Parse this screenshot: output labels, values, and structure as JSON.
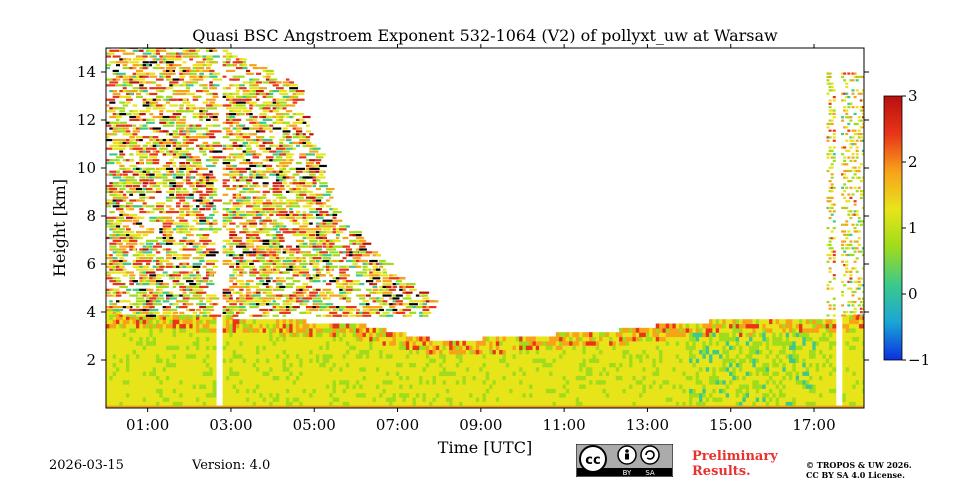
{
  "chart_data": {
    "type": "heatmap",
    "title": "Quasi BSC Angstroem Exponent 532-1064 (V2) of pollyxt_uw at Warsaw",
    "xlabel": "Time [UTC]",
    "ylabel": "Height [km]",
    "xlim_hours": [
      0,
      18.2
    ],
    "ylim_km": [
      0,
      15
    ],
    "xticks": [
      {
        "value": 1,
        "label": "01:00"
      },
      {
        "value": 3,
        "label": "03:00"
      },
      {
        "value": 5,
        "label": "05:00"
      },
      {
        "value": 7,
        "label": "07:00"
      },
      {
        "value": 9,
        "label": "09:00"
      },
      {
        "value": 11,
        "label": "11:00"
      },
      {
        "value": 13,
        "label": "13:00"
      },
      {
        "value": 15,
        "label": "15:00"
      },
      {
        "value": 17,
        "label": "17:00"
      }
    ],
    "yticks": [
      {
        "value": 2,
        "label": "2"
      },
      {
        "value": 4,
        "label": "4"
      },
      {
        "value": 6,
        "label": "6"
      },
      {
        "value": 8,
        "label": "8"
      },
      {
        "value": 10,
        "label": "10"
      },
      {
        "value": 12,
        "label": "12"
      },
      {
        "value": 14,
        "label": "14"
      }
    ],
    "colorbar": {
      "range": [
        -1,
        3
      ],
      "ticks": [
        {
          "value": 3,
          "label": "3"
        },
        {
          "value": 2,
          "label": "2"
        },
        {
          "value": 1,
          "label": "1"
        },
        {
          "value": 0,
          "label": "0"
        },
        {
          "value": -1,
          "label": "−1"
        }
      ],
      "colors": [
        "#0a2fe0",
        "#1aa6d6",
        "#3cc98a",
        "#9edc1c",
        "#e8e41a",
        "#f8a21a",
        "#e83418",
        "#b81010"
      ]
    },
    "gaps_hours": [
      [
        2.6,
        2.75
      ],
      [
        17.5,
        17.65
      ]
    ],
    "layers": [
      {
        "name": "boundary layer",
        "t_start": 0,
        "t_end": 18.2,
        "h_bottom": 0,
        "h_top_profile": [
          [
            0,
            3.9
          ],
          [
            3,
            3.7
          ],
          [
            6,
            3.4
          ],
          [
            8,
            2.7
          ],
          [
            10,
            2.9
          ],
          [
            12,
            3.1
          ],
          [
            14,
            3.5
          ],
          [
            16,
            3.6
          ],
          [
            17.5,
            3.7
          ],
          [
            18.2,
            3.8
          ]
        ],
        "typical_value": 1.2
      },
      {
        "name": "upper scattered signal",
        "t_start": 0,
        "t_end": 7.8,
        "h_top_profile": [
          [
            0,
            15
          ],
          [
            2.6,
            15
          ],
          [
            4.5,
            13.5
          ],
          [
            5.5,
            8
          ],
          [
            7,
            5.5
          ],
          [
            7.8,
            4.4
          ]
        ],
        "typical_value": 1.5
      },
      {
        "name": "late-day column",
        "t_start": 17.3,
        "t_end": 18.2,
        "h_top": 14,
        "typical_value": 1.3
      }
    ]
  },
  "footer": {
    "date": "2026-03-15",
    "version": "Version: 4.0",
    "preliminary_line1": "Preliminary",
    "preliminary_line2": "Results.",
    "copyright_line1": "© TROPOS & UW 2026.",
    "copyright_line2": "CC BY SA 4.0 License.",
    "license_badge": {
      "by": "BY",
      "sa": "SA"
    }
  }
}
